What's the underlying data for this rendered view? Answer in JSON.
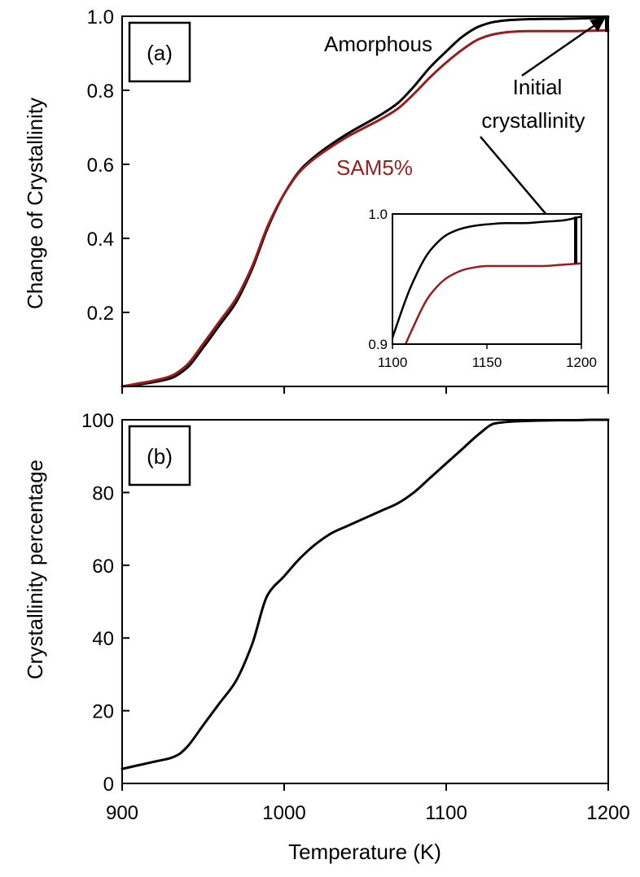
{
  "chart_data": [
    {
      "type": "line",
      "panel_label": "(a)",
      "xlabel": "",
      "ylabel": "Change of Crystallinity",
      "xlim": [
        900,
        1200
      ],
      "ylim": [
        0,
        1.0
      ],
      "x_ticks": [
        900,
        1000,
        1100,
        1200
      ],
      "y_ticks": [
        "0.2",
        "0.4",
        "0.6",
        "0.8",
        "1.0"
      ],
      "series": [
        {
          "name": "Amorphous",
          "color": "#000000",
          "x": [
            900,
            910,
            920,
            930,
            940,
            950,
            960,
            970,
            980,
            990,
            1000,
            1010,
            1020,
            1030,
            1040,
            1050,
            1060,
            1070,
            1080,
            1090,
            1100,
            1110,
            1120,
            1130,
            1140,
            1150,
            1160,
            1170,
            1180,
            1190,
            1200
          ],
          "values": [
            0.0,
            0.005,
            0.012,
            0.022,
            0.05,
            0.105,
            0.165,
            0.225,
            0.315,
            0.43,
            0.52,
            0.585,
            0.625,
            0.657,
            0.685,
            0.71,
            0.735,
            0.765,
            0.81,
            0.862,
            0.905,
            0.945,
            0.972,
            0.985,
            0.99,
            0.992,
            0.993,
            0.993,
            0.994,
            0.995,
            0.998
          ]
        },
        {
          "name": "SAM5%",
          "color": "#9b1c1c",
          "x": [
            900,
            910,
            920,
            930,
            940,
            950,
            960,
            970,
            980,
            990,
            1000,
            1010,
            1020,
            1030,
            1040,
            1050,
            1060,
            1070,
            1080,
            1090,
            1100,
            1110,
            1120,
            1130,
            1140,
            1150,
            1160,
            1170,
            1180,
            1190,
            1200
          ],
          "values": [
            0.0,
            0.008,
            0.016,
            0.028,
            0.058,
            0.115,
            0.175,
            0.235,
            0.322,
            0.435,
            0.52,
            0.582,
            0.62,
            0.65,
            0.677,
            0.7,
            0.723,
            0.75,
            0.79,
            0.835,
            0.875,
            0.91,
            0.938,
            0.952,
            0.958,
            0.96,
            0.96,
            0.96,
            0.96,
            0.961,
            0.962
          ]
        }
      ],
      "annotations": {
        "amorphous": "Amorphous",
        "sam": "SAM5%",
        "initial_line1": "Initial",
        "initial_line2": "crystallinity"
      },
      "inset": {
        "xlim": [
          1100,
          1200
        ],
        "ylim": [
          0.9,
          1.0
        ],
        "x_ticks": [
          1100,
          1150,
          1200
        ],
        "y_ticks": [
          "0.9",
          "1.0"
        ]
      }
    },
    {
      "type": "line",
      "panel_label": "(b)",
      "xlabel": "Temperature (K)",
      "ylabel": "Crystallinity percentage",
      "xlim": [
        900,
        1200
      ],
      "ylim": [
        0,
        100
      ],
      "x_ticks": [
        900,
        1000,
        1100,
        1200
      ],
      "y_ticks": [
        0,
        20,
        40,
        60,
        80,
        100
      ],
      "series": [
        {
          "color": "#000000",
          "x": [
            900,
            910,
            920,
            930,
            935,
            940,
            950,
            960,
            970,
            980,
            990,
            1000,
            1010,
            1020,
            1030,
            1040,
            1050,
            1060,
            1070,
            1080,
            1090,
            1100,
            1110,
            1120,
            1130,
            1140,
            1150,
            1160,
            1170,
            1180,
            1190,
            1200
          ],
          "values": [
            4,
            5,
            6,
            7,
            8,
            10,
            16,
            22,
            28,
            38,
            52,
            57,
            62,
            66,
            69,
            71,
            73,
            75,
            77,
            80,
            84,
            88,
            92,
            96,
            99,
            99.5,
            99.7,
            99.8,
            99.9,
            99.9,
            100,
            100
          ]
        }
      ]
    }
  ]
}
